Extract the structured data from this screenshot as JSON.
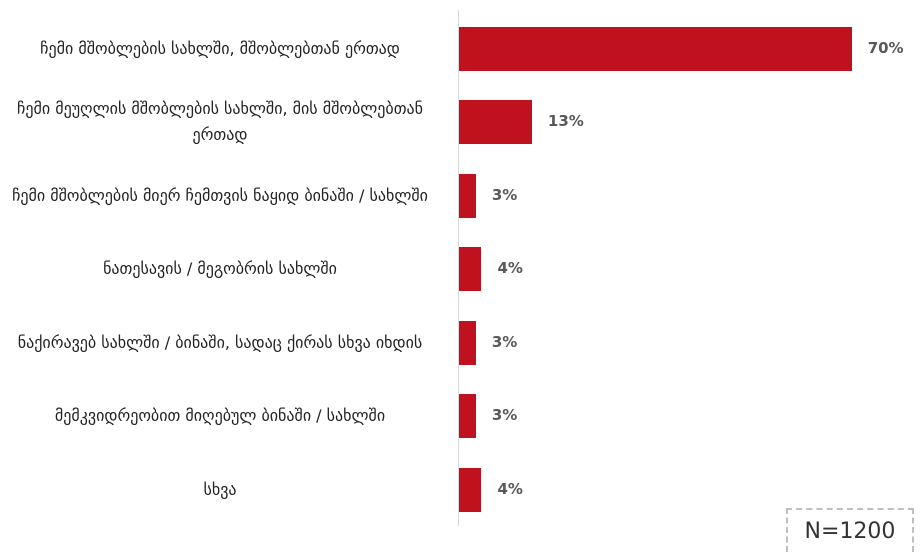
{
  "chart_data": {
    "type": "bar",
    "orientation": "horizontal",
    "categories": [
      "ჩემი მშობლების სახლში, მშობლებთან ერთად",
      "ჩემი მეუღლის მშობლების სახლში, მის მშობლებთან ერთად",
      "ჩემი მშობლების მიერ ჩემთვის ნაყიდ ბინაში / სახლში",
      "ნათესავის / მეგობრის სახლში",
      "ნაქირავებ სახლში / ბინაში, სადაც ქირას სხვა იხდის",
      "მემკვიდრეობით მიღებულ ბინაში / სახლში",
      "სხვა"
    ],
    "values": [
      70,
      13,
      3,
      4,
      3,
      3,
      4
    ],
    "value_labels": [
      "70%",
      "13%",
      "3%",
      "4%",
      "3%",
      "3%",
      "4%"
    ],
    "color": "#c0111f",
    "annotation": "N=1200"
  }
}
